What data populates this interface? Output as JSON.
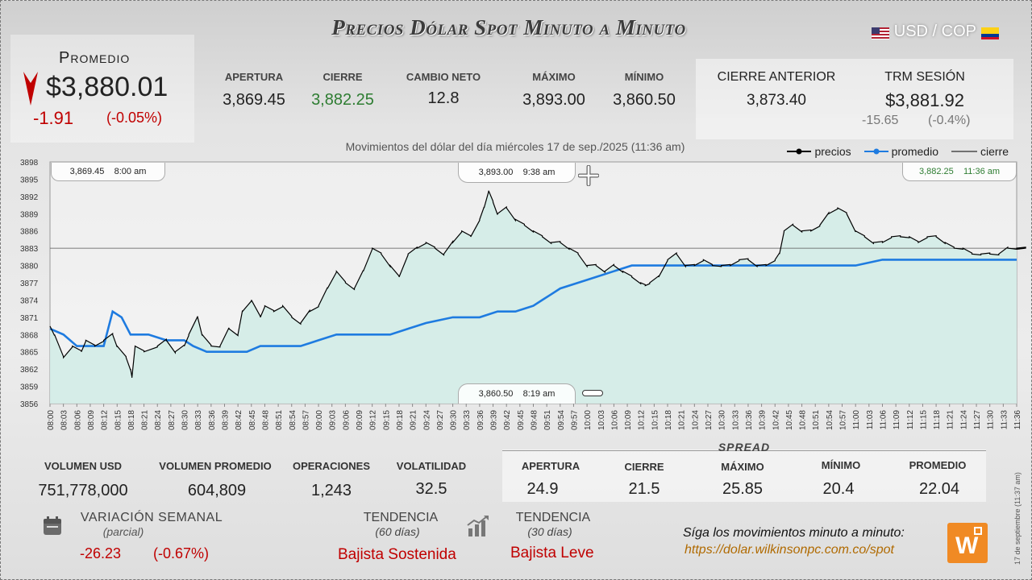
{
  "title": "Precios Dólar Spot Minuto a Minuto",
  "pair": "USD / COP",
  "promedio": {
    "label": "Promedio",
    "value": "$3,880.01",
    "change": "-1.91",
    "pct": "(-0.05%)"
  },
  "summary": [
    {
      "label": "APERTURA",
      "value": "3,869.45",
      "color": "#222222"
    },
    {
      "label": "CIERRE",
      "value": "3,882.25",
      "color": "#2e7d32"
    },
    {
      "label": "CAMBIO NETO",
      "value": "12.8",
      "color": "#222222"
    },
    {
      "label": "MÁXIMO",
      "value": "3,893.00",
      "color": "#222222"
    },
    {
      "label": "MÍNIMO",
      "value": "3,860.50",
      "color": "#222222"
    }
  ],
  "cierre_anterior": {
    "label": "CIERRE ANTERIOR",
    "value": "3,873.40"
  },
  "trm": {
    "label": "TRM SESIÓN",
    "value": "$3,881.92",
    "change": "-15.65",
    "pct": "(-0.4%)"
  },
  "subtitle": "Movimientos del dólar del día miércoles 17 de sep./2025 (11:36 am)",
  "legend": {
    "precios": "precios",
    "promedio": "promedio",
    "cierre": "cierre"
  },
  "callouts": {
    "open": "3,869.45    8:00 am",
    "max": "3,893.00    9:38 am",
    "close": "3,882.25    11:36 am",
    "min": "3,860.50    8:19 am"
  },
  "colors": {
    "precios": "#000000",
    "promedio": "#1e7be0",
    "area": "#d3ece7",
    "down": "#c00000"
  },
  "chart_data": {
    "type": "line",
    "ylim": [
      3856,
      3898
    ],
    "y_ticks": [
      3898,
      3895,
      3892,
      3889,
      3886,
      3883,
      3880,
      3877,
      3874,
      3871,
      3868,
      3865,
      3862,
      3859,
      3856
    ],
    "x_ticks": [
      "08:00",
      "08:03",
      "08:06",
      "08:09",
      "08:12",
      "08:15",
      "08:18",
      "08:21",
      "08:24",
      "08:27",
      "08:30",
      "08:33",
      "08:36",
      "08:39",
      "08:42",
      "08:45",
      "08:48",
      "08:51",
      "08:54",
      "08:57",
      "09:00",
      "09:03",
      "09:06",
      "09:09",
      "09:12",
      "09:15",
      "09:18",
      "09:21",
      "09:24",
      "09:27",
      "09:30",
      "09:33",
      "09:36",
      "09:39",
      "09:42",
      "09:45",
      "09:48",
      "09:51",
      "09:54",
      "09:57",
      "10:00",
      "10:03",
      "10:06",
      "10:09",
      "10:12",
      "10:15",
      "10:18",
      "10:21",
      "10:24",
      "10:27",
      "10:30",
      "10:33",
      "10:36",
      "10:39",
      "10:42",
      "10:45",
      "10:48",
      "10:51",
      "10:54",
      "10:57",
      "11:00",
      "11:03",
      "11:06",
      "11:09",
      "11:12",
      "11:15",
      "11:18",
      "11:21",
      "11:24",
      "11:27",
      "11:30",
      "11:33",
      "11:36"
    ],
    "cierre_line": 3883,
    "series": [
      {
        "name": "precios",
        "points": [
          [
            0,
            3869.45
          ],
          [
            1,
            3868
          ],
          [
            3,
            3864
          ],
          [
            5,
            3866
          ],
          [
            7,
            3865
          ],
          [
            8,
            3867
          ],
          [
            10,
            3866
          ],
          [
            12,
            3867
          ],
          [
            14,
            3868
          ],
          [
            15,
            3866
          ],
          [
            17,
            3864
          ],
          [
            18,
            3862
          ],
          [
            18.3,
            3860.5
          ],
          [
            19,
            3866
          ],
          [
            21,
            3865
          ],
          [
            24,
            3866
          ],
          [
            26,
            3867
          ],
          [
            28,
            3865
          ],
          [
            30,
            3866
          ],
          [
            31,
            3868
          ],
          [
            33,
            3871
          ],
          [
            34,
            3868
          ],
          [
            36,
            3866
          ],
          [
            38,
            3866
          ],
          [
            40,
            3869
          ],
          [
            42,
            3868
          ],
          [
            43,
            3872
          ],
          [
            45,
            3874
          ],
          [
            47,
            3871
          ],
          [
            48,
            3873
          ],
          [
            50,
            3872
          ],
          [
            52,
            3873
          ],
          [
            54,
            3871
          ],
          [
            56,
            3870
          ],
          [
            58,
            3872
          ],
          [
            60,
            3873
          ],
          [
            62,
            3876
          ],
          [
            64,
            3879
          ],
          [
            66,
            3877
          ],
          [
            68,
            3876
          ],
          [
            70,
            3879
          ],
          [
            72,
            3883
          ],
          [
            74,
            3882
          ],
          [
            76,
            3880
          ],
          [
            78,
            3878
          ],
          [
            80,
            3882
          ],
          [
            82,
            3883
          ],
          [
            84,
            3884
          ],
          [
            86,
            3883
          ],
          [
            88,
            3882
          ],
          [
            90,
            3884
          ],
          [
            92,
            3886
          ],
          [
            94,
            3885
          ],
          [
            96,
            3888
          ],
          [
            97,
            3890
          ],
          [
            98,
            3893
          ],
          [
            99,
            3891
          ],
          [
            100,
            3889
          ],
          [
            102,
            3890
          ],
          [
            104,
            3888
          ],
          [
            106,
            3887
          ],
          [
            108,
            3886
          ],
          [
            110,
            3885
          ],
          [
            112,
            3884
          ],
          [
            114,
            3884
          ],
          [
            116,
            3883
          ],
          [
            118,
            3882
          ],
          [
            120,
            3880
          ],
          [
            122,
            3880
          ],
          [
            124,
            3879
          ],
          [
            126,
            3880
          ],
          [
            128,
            3879
          ],
          [
            130,
            3878
          ],
          [
            132,
            3877
          ],
          [
            133,
            3876.5
          ],
          [
            134,
            3877
          ],
          [
            136,
            3878
          ],
          [
            138,
            3881
          ],
          [
            140,
            3882
          ],
          [
            142,
            3880
          ],
          [
            144,
            3880
          ],
          [
            146,
            3881
          ],
          [
            148,
            3880
          ],
          [
            150,
            3880
          ],
          [
            152,
            3880
          ],
          [
            154,
            3881
          ],
          [
            156,
            3881
          ],
          [
            158,
            3880
          ],
          [
            160,
            3880
          ],
          [
            162,
            3881
          ],
          [
            163,
            3882
          ],
          [
            164,
            3886
          ],
          [
            166,
            3887
          ],
          [
            168,
            3886
          ],
          [
            170,
            3886
          ],
          [
            172,
            3887
          ],
          [
            174,
            3889
          ],
          [
            176,
            3890
          ],
          [
            178,
            3889
          ],
          [
            180,
            3886
          ],
          [
            182,
            3885
          ],
          [
            184,
            3884
          ],
          [
            186,
            3884
          ],
          [
            188,
            3885
          ],
          [
            190,
            3885
          ],
          [
            192,
            3885
          ],
          [
            194,
            3884
          ],
          [
            196,
            3885
          ],
          [
            198,
            3885
          ],
          [
            200,
            3884
          ],
          [
            202,
            3883
          ],
          [
            204,
            3883
          ],
          [
            206,
            3882
          ],
          [
            208,
            3882
          ],
          [
            210,
            3882
          ],
          [
            212,
            3882
          ],
          [
            214,
            3883
          ],
          [
            216,
            3883
          ],
          [
            218,
            3883
          ],
          [
            216,
            3883
          ]
        ]
      },
      {
        "name": "promedio",
        "points": [
          [
            0,
            3869
          ],
          [
            3,
            3868
          ],
          [
            6,
            3866
          ],
          [
            9,
            3866
          ],
          [
            12,
            3866
          ],
          [
            14,
            3872
          ],
          [
            16,
            3871
          ],
          [
            18,
            3868
          ],
          [
            22,
            3868
          ],
          [
            26,
            3867
          ],
          [
            30,
            3867
          ],
          [
            32,
            3866
          ],
          [
            35,
            3865
          ],
          [
            40,
            3865
          ],
          [
            44,
            3865
          ],
          [
            47,
            3866
          ],
          [
            50,
            3866
          ],
          [
            56,
            3866
          ],
          [
            60,
            3867
          ],
          [
            64,
            3868
          ],
          [
            70,
            3868
          ],
          [
            76,
            3868
          ],
          [
            80,
            3869
          ],
          [
            84,
            3870
          ],
          [
            90,
            3871
          ],
          [
            96,
            3871
          ],
          [
            100,
            3872
          ],
          [
            104,
            3872
          ],
          [
            108,
            3873
          ],
          [
            110,
            3874
          ],
          [
            112,
            3875
          ],
          [
            114,
            3876
          ],
          [
            118,
            3877
          ],
          [
            122,
            3878
          ],
          [
            126,
            3879
          ],
          [
            130,
            3880
          ],
          [
            136,
            3880
          ],
          [
            142,
            3880
          ],
          [
            150,
            3880
          ],
          [
            156,
            3880
          ],
          [
            164,
            3880
          ],
          [
            172,
            3880
          ],
          [
            180,
            3880
          ],
          [
            186,
            3881
          ],
          [
            192,
            3881
          ],
          [
            198,
            3881
          ],
          [
            204,
            3881
          ],
          [
            210,
            3881
          ],
          [
            216,
            3881
          ]
        ]
      }
    ]
  },
  "stats": [
    {
      "label": "VOLUMEN USD",
      "value": "751,778,000"
    },
    {
      "label": "VOLUMEN PROMEDIO",
      "value": "604,809"
    },
    {
      "label": "OPERACIONES",
      "value": "1,243"
    },
    {
      "label": "VOLATILIDAD",
      "value": "32.5"
    }
  ],
  "spread": {
    "title": "SPREAD",
    "items": [
      {
        "label": "APERTURA",
        "value": "24.9"
      },
      {
        "label": "CIERRE",
        "value": "21.5"
      },
      {
        "label": "MÁXIMO",
        "value": "25.85"
      },
      {
        "label": "MÍNIMO",
        "value": "20.4"
      },
      {
        "label": "PROMEDIO",
        "value": "22.04"
      }
    ]
  },
  "semanal": {
    "label": "VARIACIÓN SEMANAL",
    "sub": "(parcial)",
    "value": "-26.23",
    "pct": "(-0.67%)"
  },
  "trend60": {
    "label": "TENDENCIA",
    "sub": "(60 días)",
    "value": "Bajista Sostenida"
  },
  "trend30": {
    "label": "TENDENCIA",
    "sub": "(30 días)",
    "value": "Bajista Leve"
  },
  "footer": {
    "text": "Síga los movimientos minuto a minuto:",
    "url": "https://dolar.wilkinsonpc.com.co/spot"
  },
  "vertical_note": "17 de septiembre (11:37 am)"
}
